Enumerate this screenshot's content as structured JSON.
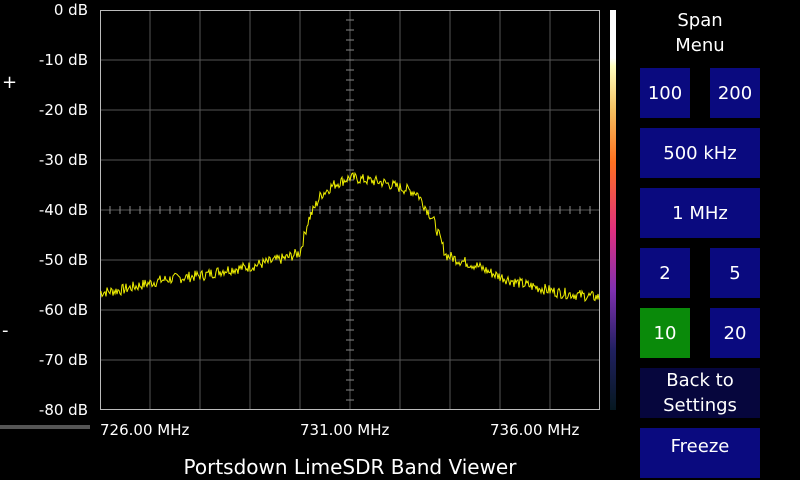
{
  "y_axis": {
    "labels": [
      "0 dB",
      "-10 dB",
      "-20 dB",
      "-30 dB",
      "-40 dB",
      "-50 dB",
      "-60 dB",
      "-70 dB",
      "-80 dB"
    ]
  },
  "x_axis": {
    "labels": [
      "726.00 MHz",
      "731.00 MHz",
      "736.00 MHz"
    ]
  },
  "zoom": {
    "plus": "+",
    "minus": "-"
  },
  "title": "Portsdown LimeSDR Band Viewer",
  "menu": {
    "title": "Span Menu",
    "title_line1": "Span",
    "title_line2": "Menu",
    "buttons": {
      "b100": "100",
      "b200": "200",
      "b500": "500 kHz",
      "b1m": "1 MHz",
      "b2": "2",
      "b5": "5",
      "b10": "10",
      "b20": "20",
      "back_line1": "Back to",
      "back_line2": "Settings",
      "freeze": "Freeze"
    },
    "selected": "10"
  },
  "colors": {
    "trace": "#f0f000",
    "button": "#0a0a7f",
    "button_selected": "#0a8a0a",
    "grid": "#555555"
  },
  "chart_data": {
    "type": "line",
    "x": [
      725.0,
      725.5,
      726.0,
      726.5,
      727.0,
      727.5,
      728.0,
      728.5,
      729.0,
      729.5,
      729.8,
      730.0,
      730.3,
      730.6,
      731.0,
      731.4,
      731.8,
      732.2,
      732.6,
      733.0,
      733.3,
      733.6,
      734.0,
      734.5,
      735.0,
      735.5,
      736.0,
      736.5,
      737.0
    ],
    "y": [
      -56.5,
      -56.0,
      -55.0,
      -54.0,
      -53.5,
      -53.0,
      -52.0,
      -51.5,
      -50.5,
      -49.5,
      -48.5,
      -42.0,
      -37.0,
      -35.0,
      -33.5,
      -34.0,
      -34.5,
      -35.5,
      -36.5,
      -42.0,
      -49.0,
      -50.0,
      -51.0,
      -53.0,
      -54.5,
      -55.5,
      -56.5,
      -57.0,
      -57.5
    ],
    "xlim": [
      725.0,
      737.0
    ],
    "ylim": [
      -80,
      0
    ],
    "grid": true
  }
}
